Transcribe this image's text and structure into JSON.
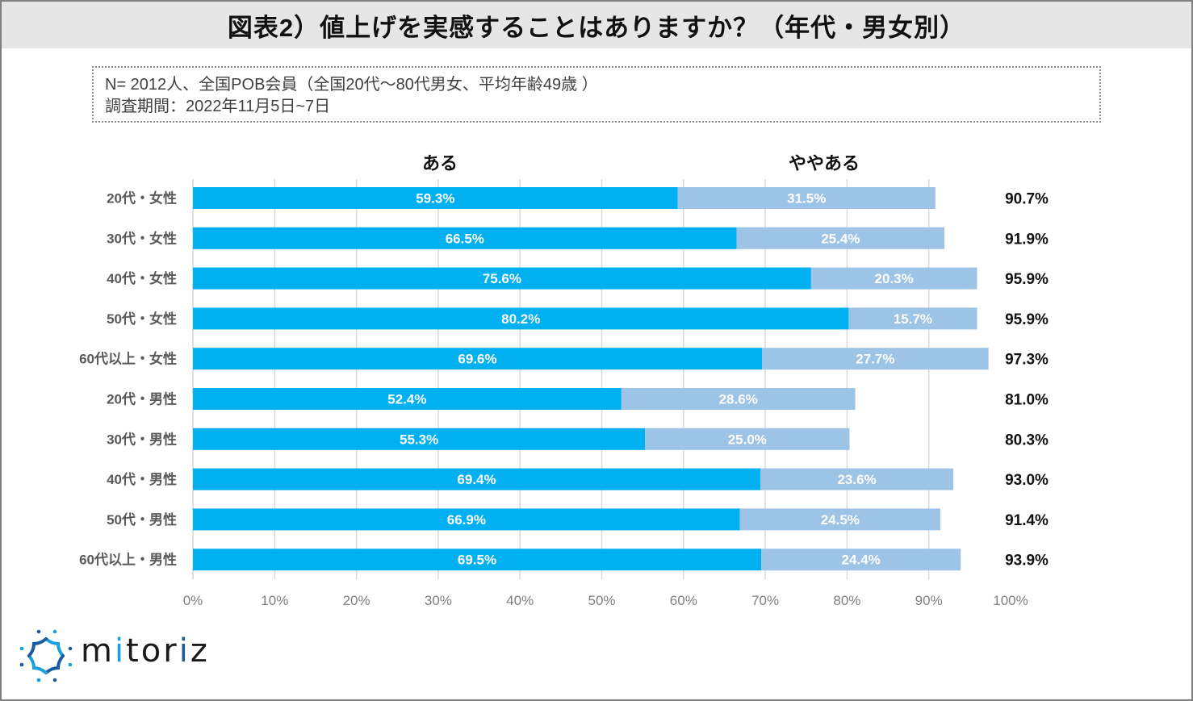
{
  "title": "図表2）値上げを実感することはありますか？（年代・男女別）",
  "note": {
    "line1": "N= 2012人、全国POB会員（全国20代～80代男女、平均年齢49歳 ）",
    "line2": "調査期間：2022年11月5日~7日"
  },
  "logo": {
    "text_parts": [
      "m",
      "i",
      "tor",
      "i",
      "z"
    ]
  },
  "colors": {
    "aru": "#00b0f0",
    "yayaaru": "#9dc3e6",
    "grid": "#d9d9d9"
  },
  "chart_data": {
    "type": "bar",
    "orientation": "horizontal",
    "stacked": true,
    "title": "図表2）値上げを実感することはありますか？（年代・男女別）",
    "xlabel": "",
    "ylabel": "",
    "xlim": [
      0,
      100
    ],
    "x_ticks": [
      "0%",
      "10%",
      "20%",
      "30%",
      "40%",
      "50%",
      "60%",
      "70%",
      "80%",
      "90%",
      "100%"
    ],
    "grid": true,
    "legend_position": "top",
    "categories": [
      "20代・女性",
      "30代・女性",
      "40代・女性",
      "50代・女性",
      "60代以上・女性",
      "20代・男性",
      "30代・男性",
      "40代・男性",
      "50代・男性",
      "60代以上・男性"
    ],
    "series": [
      {
        "name": "ある",
        "color": "#00b0f0",
        "values": [
          59.3,
          66.5,
          75.6,
          80.2,
          69.6,
          52.4,
          55.3,
          69.4,
          66.9,
          69.5
        ]
      },
      {
        "name": "ややある",
        "color": "#9dc3e6",
        "values": [
          31.5,
          25.4,
          20.3,
          15.7,
          27.7,
          28.6,
          25.0,
          23.6,
          24.5,
          24.4
        ]
      }
    ],
    "totals": [
      "90.7%",
      "91.9%",
      "95.9%",
      "95.9%",
      "97.3%",
      "81.0%",
      "80.3%",
      "93.0%",
      "91.4%",
      "93.9%"
    ]
  }
}
